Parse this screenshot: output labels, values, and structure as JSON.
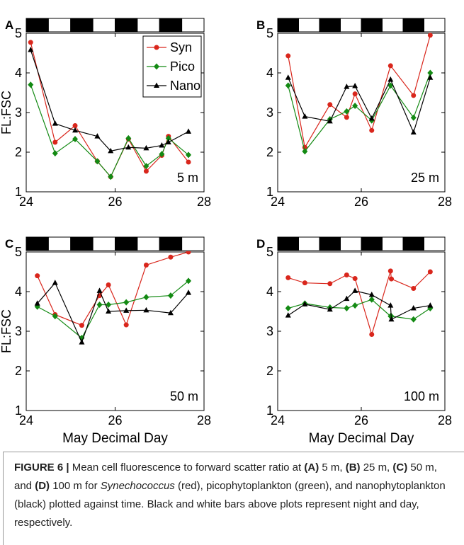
{
  "chart_data": [
    {
      "type": "line",
      "panel_label": "A",
      "annotation": "5 m",
      "ylabel": "FL:FSC",
      "legend": "upper right",
      "xlim": [
        24,
        28
      ],
      "xticks": [
        24,
        26,
        28
      ],
      "ylim": [
        1,
        5
      ],
      "yticks": [
        1,
        2,
        3,
        4,
        5
      ],
      "x": [
        24.1,
        24.65,
        25.1,
        25.6,
        25.9,
        26.3,
        26.7,
        27.05,
        27.2,
        27.65
      ],
      "series": [
        {
          "name": "Syn",
          "color": "#d9261c",
          "marker": "circle",
          "values": [
            4.77,
            2.25,
            2.67,
            1.77,
            1.38,
            2.33,
            1.52,
            1.92,
            2.4,
            1.75
          ]
        },
        {
          "name": "Pico",
          "color": "#138a13",
          "marker": "diamond",
          "values": [
            3.7,
            1.97,
            2.33,
            1.77,
            1.38,
            2.35,
            1.65,
            1.95,
            2.35,
            1.93
          ]
        },
        {
          "name": "Nano",
          "color": "#000000",
          "marker": "triangle",
          "values": [
            4.58,
            2.72,
            2.55,
            2.4,
            2.03,
            2.12,
            2.1,
            2.17,
            2.25,
            2.52
          ]
        }
      ]
    },
    {
      "type": "line",
      "panel_label": "B",
      "annotation": "25 m",
      "xlim": [
        24,
        28
      ],
      "xticks": [
        24,
        26,
        28
      ],
      "ylim": [
        1,
        5
      ],
      "yticks": [
        1,
        2,
        3,
        4,
        5
      ],
      "x": [
        24.25,
        24.65,
        25.25,
        25.65,
        25.85,
        26.25,
        26.7,
        27.25,
        27.65
      ],
      "series": [
        {
          "name": "Syn",
          "color": "#d9261c",
          "marker": "circle",
          "values": [
            4.43,
            2.12,
            3.2,
            2.88,
            3.47,
            2.55,
            4.18,
            3.43,
            4.95
          ]
        },
        {
          "name": "Pico",
          "color": "#138a13",
          "marker": "diamond",
          "values": [
            3.68,
            2.02,
            2.83,
            3.03,
            3.17,
            2.8,
            3.68,
            2.87,
            4.0
          ]
        },
        {
          "name": "Nano",
          "color": "#000000",
          "marker": "triangle",
          "values": [
            3.88,
            2.9,
            2.78,
            3.65,
            3.67,
            2.85,
            3.83,
            2.5,
            3.88
          ]
        }
      ]
    },
    {
      "type": "line",
      "panel_label": "C",
      "annotation": "50 m",
      "ylabel": "FL:FSC",
      "xlabel": "May Decimal Day",
      "xlim": [
        24,
        28
      ],
      "xticks": [
        24,
        26,
        28
      ],
      "ylim": [
        1,
        5
      ],
      "yticks": [
        1,
        2,
        3,
        4,
        5
      ],
      "x": [
        24.25,
        24.65,
        25.25,
        25.65,
        25.85,
        26.25,
        26.7,
        27.25,
        27.65
      ],
      "series": [
        {
          "name": "Syn",
          "color": "#d9261c",
          "marker": "circle",
          "values": [
            4.4,
            3.42,
            3.15,
            3.9,
            4.17,
            3.16,
            4.67,
            4.87,
            5.0
          ]
        },
        {
          "name": "Pico",
          "color": "#138a13",
          "marker": "diamond",
          "values": [
            3.62,
            3.38,
            2.83,
            3.67,
            3.67,
            3.73,
            3.86,
            3.9,
            4.27
          ]
        },
        {
          "name": "Nano",
          "color": "#000000",
          "marker": "triangle",
          "values": [
            3.7,
            4.22,
            2.72,
            4.02,
            3.5,
            3.52,
            3.53,
            3.46,
            3.97
          ]
        }
      ]
    },
    {
      "type": "line",
      "panel_label": "D",
      "annotation": "100 m",
      "xlabel": "May Decimal Day",
      "xlim": [
        24,
        28
      ],
      "xticks": [
        24,
        26,
        28
      ],
      "ylim": [
        1,
        5
      ],
      "yticks": [
        1,
        2,
        3,
        4,
        5
      ],
      "x": [
        24.25,
        24.65,
        25.25,
        25.65,
        25.85,
        26.25,
        26.7,
        26.72,
        27.25,
        27.65
      ],
      "series": [
        {
          "name": "Syn",
          "color": "#d9261c",
          "marker": "circle",
          "values": [
            4.35,
            4.22,
            4.2,
            4.42,
            4.33,
            2.92,
            4.52,
            4.32,
            4.08,
            4.5
          ]
        },
        {
          "name": "Pico",
          "color": "#138a13",
          "marker": "diamond",
          "values": [
            3.58,
            3.7,
            3.6,
            3.58,
            3.65,
            3.8,
            3.38,
            3.38,
            3.3,
            3.58
          ]
        },
        {
          "name": "Nano",
          "color": "#000000",
          "marker": "triangle",
          "values": [
            3.4,
            3.68,
            3.55,
            3.82,
            4.02,
            3.92,
            3.65,
            3.3,
            3.58,
            3.65
          ]
        }
      ]
    }
  ],
  "caption": [
    "FIGURE 6 |",
    " Mean cell fluorescence to forward scatter ratio at ",
    "(A)",
    " 5 m, ",
    "(B)",
    " 25 m, ",
    "(C)",
    " 50 m, and ",
    "(D)",
    " 100 m for ",
    "Synechococcus",
    " (red), picophytoplankton (green), and nanophytoplankton (black) plotted against time. Black and white bars above plots represent night and day, respectively."
  ]
}
